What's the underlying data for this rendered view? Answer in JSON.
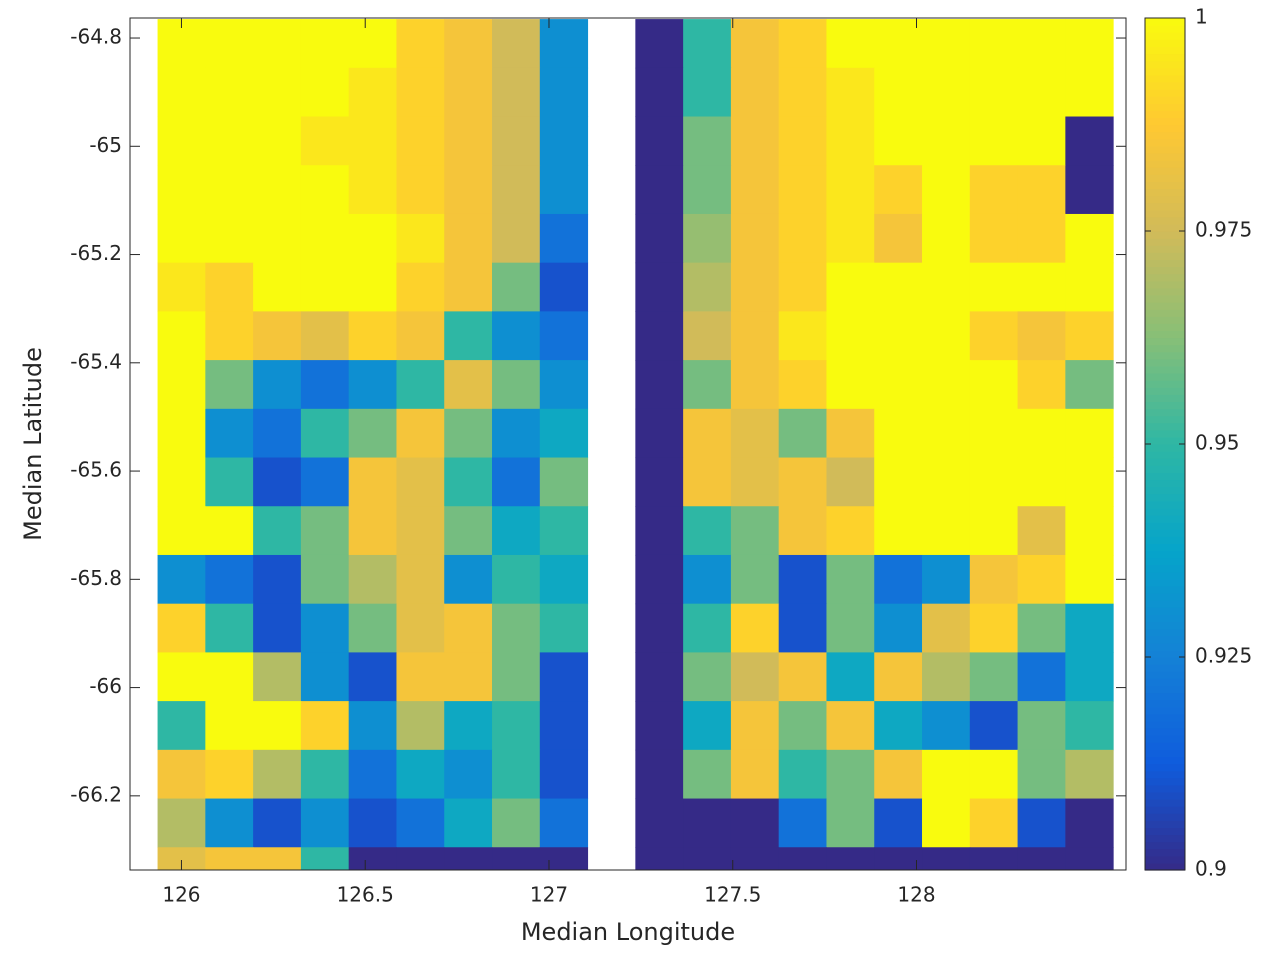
{
  "chart_data": {
    "type": "heatmap",
    "xlabel": "Median Longitude",
    "ylabel": "Median Latitude",
    "x": [
      126.0,
      126.13,
      126.26,
      126.39,
      126.52,
      126.65,
      126.78,
      126.91,
      127.04,
      127.17,
      127.3,
      127.43,
      127.56,
      127.69,
      127.82,
      127.95,
      128.08,
      128.21,
      128.34,
      128.47
    ],
    "y": [
      -64.81,
      -64.9,
      -64.99,
      -65.08,
      -65.17,
      -65.26,
      -65.35,
      -65.44,
      -65.53,
      -65.62,
      -65.71,
      -65.8,
      -65.89,
      -65.98,
      -66.07,
      -66.16,
      -66.25,
      -66.34
    ],
    "z": [
      [
        1,
        1,
        1,
        1,
        1,
        0.99,
        0.985,
        0.975,
        0.93,
        null,
        0.9,
        0.95,
        0.985,
        0.99,
        1,
        1,
        1,
        1,
        1,
        1
      ],
      [
        1,
        1,
        1,
        1,
        0.995,
        0.99,
        0.985,
        0.975,
        0.93,
        null,
        0.9,
        0.95,
        0.985,
        0.99,
        0.995,
        1,
        1,
        1,
        1,
        1
      ],
      [
        1,
        1,
        1,
        0.995,
        0.995,
        0.99,
        0.985,
        0.975,
        0.93,
        null,
        0.9,
        0.96,
        0.985,
        0.99,
        0.995,
        1,
        1,
        1,
        1,
        0.9
      ],
      [
        1,
        1,
        1,
        1,
        0.995,
        0.99,
        0.985,
        0.975,
        0.93,
        null,
        0.9,
        0.96,
        0.985,
        0.99,
        0.995,
        0.99,
        1,
        0.99,
        0.99,
        0.9
      ],
      [
        1,
        1,
        1,
        1,
        1,
        0.995,
        0.985,
        0.975,
        0.92,
        null,
        0.9,
        0.965,
        0.985,
        0.99,
        0.995,
        0.985,
        1,
        0.99,
        0.99,
        1
      ],
      [
        0.995,
        0.99,
        1,
        1,
        1,
        0.99,
        0.985,
        0.96,
        0.91,
        null,
        0.9,
        0.97,
        0.985,
        0.99,
        1,
        1,
        1,
        1,
        1,
        1
      ],
      [
        1,
        0.99,
        0.985,
        0.98,
        0.99,
        0.985,
        0.95,
        0.93,
        0.92,
        null,
        0.9,
        0.975,
        0.985,
        0.995,
        1,
        1,
        1,
        0.99,
        0.985,
        0.99
      ],
      [
        1,
        0.96,
        0.93,
        0.92,
        0.93,
        0.95,
        0.98,
        0.96,
        0.93,
        null,
        0.9,
        0.96,
        0.985,
        0.99,
        1,
        1,
        1,
        1,
        0.99,
        0.96
      ],
      [
        1,
        0.93,
        0.92,
        0.95,
        0.96,
        0.985,
        0.96,
        0.93,
        0.94,
        null,
        0.9,
        0.985,
        0.98,
        0.96,
        0.985,
        1,
        1,
        1,
        1,
        1
      ],
      [
        1,
        0.95,
        0.91,
        0.92,
        0.985,
        0.98,
        0.95,
        0.92,
        0.96,
        null,
        0.9,
        0.985,
        0.98,
        0.985,
        0.975,
        1,
        1,
        1,
        1,
        1
      ],
      [
        1,
        1,
        0.95,
        0.96,
        0.985,
        0.98,
        0.96,
        0.94,
        0.95,
        null,
        0.9,
        0.95,
        0.96,
        0.985,
        0.99,
        1,
        1,
        1,
        0.98,
        1
      ],
      [
        0.93,
        0.92,
        0.91,
        0.96,
        0.97,
        0.98,
        0.93,
        0.95,
        0.94,
        null,
        0.9,
        0.93,
        0.96,
        0.91,
        0.96,
        0.92,
        0.93,
        0.985,
        0.99,
        1
      ],
      [
        0.99,
        0.95,
        0.91,
        0.93,
        0.96,
        0.98,
        0.985,
        0.96,
        0.95,
        null,
        0.9,
        0.95,
        0.99,
        0.91,
        0.96,
        0.93,
        0.98,
        0.99,
        0.96,
        0.94
      ],
      [
        1,
        1,
        0.97,
        0.93,
        0.91,
        0.985,
        0.985,
        0.96,
        0.91,
        null,
        0.9,
        0.96,
        0.975,
        0.985,
        0.94,
        0.985,
        0.97,
        0.96,
        0.92,
        0.94
      ],
      [
        0.95,
        1,
        1,
        0.99,
        0.93,
        0.97,
        0.94,
        0.95,
        0.91,
        null,
        0.9,
        0.94,
        0.985,
        0.96,
        0.985,
        0.94,
        0.93,
        0.91,
        0.96,
        0.95
      ],
      [
        0.985,
        0.99,
        0.97,
        0.95,
        0.92,
        0.94,
        0.93,
        0.95,
        0.91,
        null,
        0.9,
        0.96,
        0.985,
        0.95,
        0.96,
        0.985,
        1,
        1,
        0.96,
        0.97
      ],
      [
        0.97,
        0.93,
        0.91,
        0.93,
        0.91,
        0.92,
        0.94,
        0.96,
        0.92,
        null,
        0.9,
        0.9,
        0.9,
        0.92,
        0.96,
        0.91,
        1,
        0.99,
        0.91,
        0.9
      ],
      [
        0.98,
        0.985,
        0.985,
        0.95,
        0.9,
        0.9,
        0.9,
        0.9,
        0.9,
        null,
        0.9,
        0.9,
        0.9,
        0.9,
        0.9,
        0.9,
        0.9,
        0.9,
        0.9,
        0.9
      ]
    ],
    "xlim": [
      125.86,
      128.57
    ],
    "ylim": [
      -66.337,
      -64.763
    ],
    "xticks": [
      126,
      126.5,
      127,
      127.5,
      128
    ],
    "yticks": [
      -64.8,
      -65,
      -65.2,
      -65.4,
      -65.6,
      -65.8,
      -66,
      -66.2
    ],
    "clim": [
      0.9,
      1
    ],
    "cticks": [
      0.9,
      0.925,
      0.95,
      0.975,
      1
    ],
    "colormap": [
      "#352a87",
      "#0f5cdd",
      "#1481d6",
      "#06a4ca",
      "#2eb7a4",
      "#87bf77",
      "#d1bb59",
      "#fec832",
      "#f9fb0e"
    ]
  }
}
